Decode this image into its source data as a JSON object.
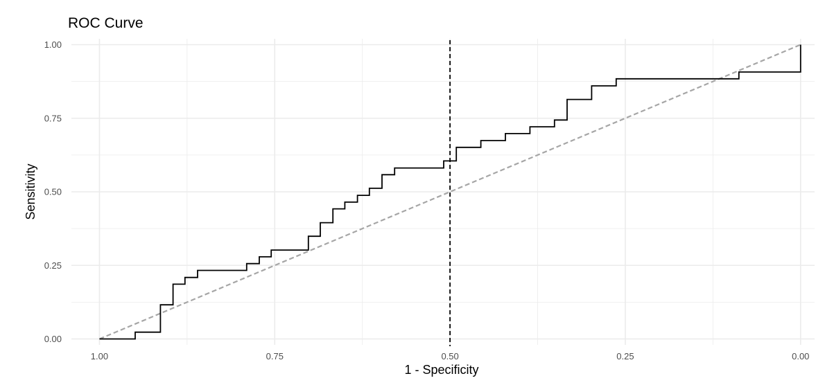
{
  "chart_data": {
    "type": "line",
    "title": "ROC Curve",
    "xlabel": "1 - Specificity",
    "ylabel": "Sensitivity",
    "x_reversed": true,
    "xlim": [
      1.04,
      -0.02
    ],
    "ylim": [
      -0.02,
      1.02
    ],
    "x_ticks": [
      1.0,
      0.75,
      0.5,
      0.25,
      0.0
    ],
    "x_tick_labels": [
      "1.00",
      "0.75",
      "0.50",
      "0.25",
      "0.00"
    ],
    "y_ticks": [
      0.0,
      0.25,
      0.5,
      0.75,
      1.0
    ],
    "y_tick_labels": [
      "0.00",
      "0.25",
      "0.50",
      "0.75",
      "1.00"
    ],
    "grid": true,
    "reference_vline_x": 0.5,
    "colors": {
      "roc": "#000000",
      "diagonal": "#a6a6a6",
      "vline": "#000000",
      "grid": "#ebebeb"
    },
    "series": [
      {
        "points": [
          [
            1.0,
            0.0
          ],
          [
            0.949,
            0.0
          ],
          [
            0.949,
            0.023
          ],
          [
            0.913,
            0.023
          ],
          [
            0.913,
            0.116
          ],
          [
            0.895,
            0.116
          ],
          [
            0.895,
            0.186
          ],
          [
            0.878,
            0.186
          ],
          [
            0.878,
            0.209
          ],
          [
            0.86,
            0.209
          ],
          [
            0.86,
            0.233
          ],
          [
            0.79,
            0.233
          ],
          [
            0.79,
            0.256
          ],
          [
            0.772,
            0.256
          ],
          [
            0.772,
            0.279
          ],
          [
            0.755,
            0.279
          ],
          [
            0.755,
            0.302
          ],
          [
            0.702,
            0.302
          ],
          [
            0.702,
            0.349
          ],
          [
            0.685,
            0.349
          ],
          [
            0.685,
            0.395
          ],
          [
            0.667,
            0.395
          ],
          [
            0.667,
            0.442
          ],
          [
            0.65,
            0.442
          ],
          [
            0.65,
            0.465
          ],
          [
            0.632,
            0.465
          ],
          [
            0.632,
            0.488
          ],
          [
            0.615,
            0.488
          ],
          [
            0.615,
            0.512
          ],
          [
            0.597,
            0.512
          ],
          [
            0.597,
            0.558
          ],
          [
            0.579,
            0.558
          ],
          [
            0.579,
            0.581
          ],
          [
            0.509,
            0.581
          ],
          [
            0.509,
            0.605
          ],
          [
            0.491,
            0.605
          ],
          [
            0.491,
            0.651
          ],
          [
            0.456,
            0.651
          ],
          [
            0.456,
            0.674
          ],
          [
            0.421,
            0.674
          ],
          [
            0.421,
            0.698
          ],
          [
            0.386,
            0.698
          ],
          [
            0.386,
            0.721
          ],
          [
            0.351,
            0.721
          ],
          [
            0.351,
            0.744
          ],
          [
            0.333,
            0.744
          ],
          [
            0.333,
            0.814
          ],
          [
            0.298,
            0.814
          ],
          [
            0.298,
            0.86
          ],
          [
            0.263,
            0.86
          ],
          [
            0.263,
            0.884
          ],
          [
            0.088,
            0.884
          ],
          [
            0.088,
            0.907
          ],
          [
            0.0,
            0.907
          ],
          [
            0.0,
            1.0
          ]
        ]
      },
      {
        "points": [
          [
            1.0,
            0.0
          ],
          [
            0.0,
            1.0
          ]
        ]
      }
    ]
  }
}
